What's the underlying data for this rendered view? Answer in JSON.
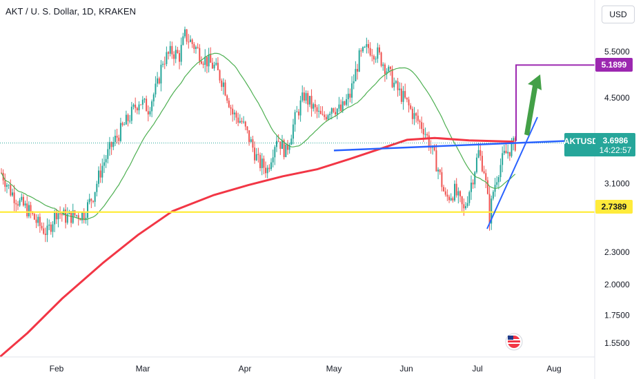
{
  "header": {
    "title": "AKT / U. S. Dollar, 1D, KRAKEN",
    "currency_button": "USD"
  },
  "colors": {
    "up": "#26a69a",
    "down": "#ef5350",
    "ma_fast": "#4caf50",
    "ma_slow": "#f23645",
    "support": "#ffeb3b",
    "trendline": "#2962ff",
    "target": "#9c27b0",
    "arrow": "#43a047"
  },
  "price_tags": {
    "target": "5.1899",
    "last_symbol": "AKTUSD",
    "last_price": "3.6986",
    "countdown": "14:22:57",
    "support": "2.7389"
  },
  "chart_data": {
    "type": "candlestick",
    "title": "AKT / U. S. Dollar, 1D, KRAKEN",
    "y_scale": "log",
    "y_range": [
      1.42,
      6.8
    ],
    "y_ticks": [
      "5.5000",
      "4.5000",
      "3.6986",
      "3.1000",
      "2.3000",
      "2.0000",
      "1.7500",
      "1.5500"
    ],
    "x_ticks": [
      "Feb",
      "Mar",
      "Apr",
      "May",
      "Jun",
      "Jul",
      "Aug"
    ],
    "series_close_sample": [
      {
        "month": "Feb",
        "close": 2.65
      },
      {
        "month": "Mar",
        "close": 4.3
      },
      {
        "month": "Apr",
        "close": 3.35
      },
      {
        "month": "May",
        "close": 4.35
      },
      {
        "month": "Jun",
        "close": 3.55
      },
      {
        "month": "Jul",
        "close": 3.45
      }
    ],
    "horizontal_levels": [
      {
        "value": 2.7389
      },
      {
        "value": 3.6986
      },
      {
        "value": 5.1899
      }
    ]
  }
}
